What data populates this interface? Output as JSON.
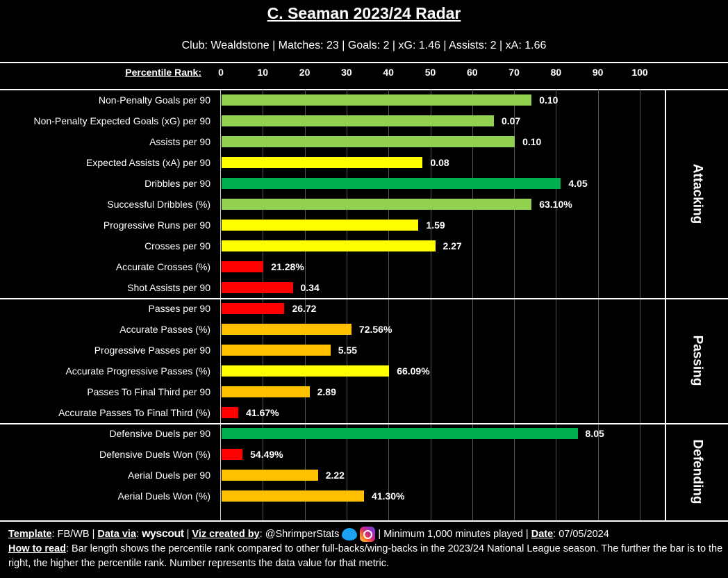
{
  "header": {
    "title": "C. Seaman 2023/24 Radar",
    "subtitle": "Club: Wealdstone | Matches: 23 | Goals: 2 | xG: 1.46 | Assists: 2 | xA: 1.66"
  },
  "chart_data": {
    "type": "bar",
    "orientation": "horizontal",
    "title": "C. Seaman 2023/24 Radar",
    "xlabel": "Percentile Rank:",
    "xlim": [
      0,
      100
    ],
    "ticks": [
      "0",
      "10",
      "20",
      "30",
      "40",
      "50",
      "60",
      "70",
      "80",
      "90",
      "100"
    ],
    "grid": true,
    "colors": {
      "elite": "#00b050",
      "good": "#92d050",
      "average": "#ffff00",
      "below": "#ffc000",
      "poor": "#ff0000"
    },
    "sections": [
      {
        "name": "Attacking",
        "metrics": [
          {
            "label": "Non-Penalty Goals per 90",
            "percentile": 74,
            "value": "0.10"
          },
          {
            "label": "Non-Penalty Expected Goals (xG) per 90",
            "percentile": 65,
            "value": "0.07"
          },
          {
            "label": "Assists per 90",
            "percentile": 70,
            "value": "0.10"
          },
          {
            "label": "Expected Assists (xA) per 90",
            "percentile": 48,
            "value": "0.08"
          },
          {
            "label": "Dribbles per 90",
            "percentile": 81,
            "value": "4.05"
          },
          {
            "label": "Successful Dribbles (%)",
            "percentile": 74,
            "value": "63.10%"
          },
          {
            "label": "Progressive Runs per 90",
            "percentile": 47,
            "value": "1.59"
          },
          {
            "label": "Crosses per 90",
            "percentile": 51,
            "value": "2.27"
          },
          {
            "label": "Accurate Crosses (%)",
            "percentile": 10,
            "value": "21.28%"
          },
          {
            "label": "Shot Assists per 90",
            "percentile": 17,
            "value": "0.34"
          }
        ]
      },
      {
        "name": "Passing",
        "metrics": [
          {
            "label": "Passes per 90",
            "percentile": 15,
            "value": "26.72"
          },
          {
            "label": "Accurate Passes (%)",
            "percentile": 31,
            "value": "72.56%"
          },
          {
            "label": "Progressive Passes per 90",
            "percentile": 26,
            "value": "5.55"
          },
          {
            "label": "Accurate Progressive Passes (%)",
            "percentile": 40,
            "value": "66.09%"
          },
          {
            "label": "Passes To Final Third per 90",
            "percentile": 21,
            "value": "2.89"
          },
          {
            "label": "Accurate Passes To Final Third (%)",
            "percentile": 4,
            "value": "41.67%"
          }
        ]
      },
      {
        "name": "Defending",
        "metrics": [
          {
            "label": "Defensive Duels per 90",
            "percentile": 85,
            "value": "8.05"
          },
          {
            "label": "Defensive Duels Won (%)",
            "percentile": 5,
            "value": "54.49%"
          },
          {
            "label": "Aerial Duels per 90",
            "percentile": 23,
            "value": "2.22"
          },
          {
            "label": "Aerial Duels Won (%)",
            "percentile": 34,
            "value": "41.30%"
          }
        ]
      }
    ]
  },
  "footer": {
    "template_label": "Template",
    "template_value": ": FB/WB | ",
    "data_label": "Data via",
    "data_source": "wyscout",
    "viz_label": "Viz created by",
    "viz_value": ": @ShrimperStats",
    "minimum": " | Minimum 1,000 minutes played | ",
    "date_label": "Date",
    "date_value": ": 07/05/2024",
    "how_label": "How to read",
    "how_text": ": Bar length shows the percentile rank compared to other full-backs/wing-backs in the 2023/24 National League season. The further the bar is to the right, the higher the percentile rank. Number represents the data value for that metric."
  }
}
